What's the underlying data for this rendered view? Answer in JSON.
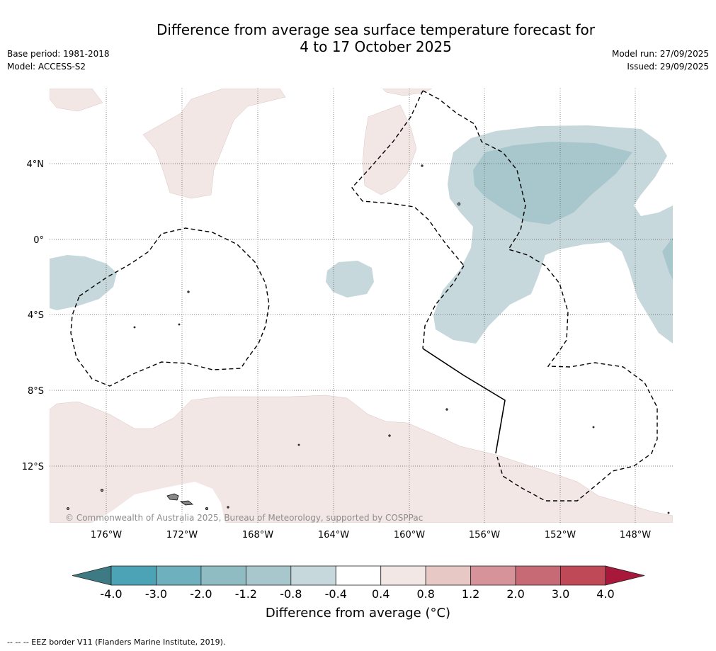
{
  "title_line1": "Difference from average sea surface temperature forecast for",
  "title_line2": "4 to 17 October 2025",
  "meta": {
    "base_period": "Base period: 1981-2018",
    "model": "Model: ACCESS-S2",
    "model_run": "Model run: 27/09/2025",
    "issued": "Issued: 29/09/2025"
  },
  "map": {
    "lat_labels": [
      "4°N",
      "0°",
      "4°S",
      "8°S",
      "12°S"
    ],
    "lon_labels": [
      "176°W",
      "172°W",
      "168°W",
      "164°W",
      "160°W",
      "156°W",
      "152°W",
      "148°W"
    ],
    "copyright": "© Commonwealth of Australia 2025, Bureau of Meteorology, supported by COSPPac"
  },
  "legend": {
    "ticks": [
      "-4.0",
      "-3.0",
      "-2.0",
      "-1.2",
      "-0.8",
      "-0.4",
      "0.4",
      "0.8",
      "1.2",
      "2.0",
      "3.0",
      "4.0"
    ],
    "label": "Difference from average (°C)",
    "colors": [
      "#3d7a83",
      "#4ba3b5",
      "#6eb0bd",
      "#8fbbc3",
      "#a8c7cd",
      "#c6d8dc",
      "#ffffff",
      "#f3e7e6",
      "#e8c8c4",
      "#d6939a",
      "#c86a76",
      "#c04958",
      "#a8183a"
    ]
  },
  "footnote": "--  --  -- EEZ border V11 (Flanders Marine Institute, 2019)."
}
